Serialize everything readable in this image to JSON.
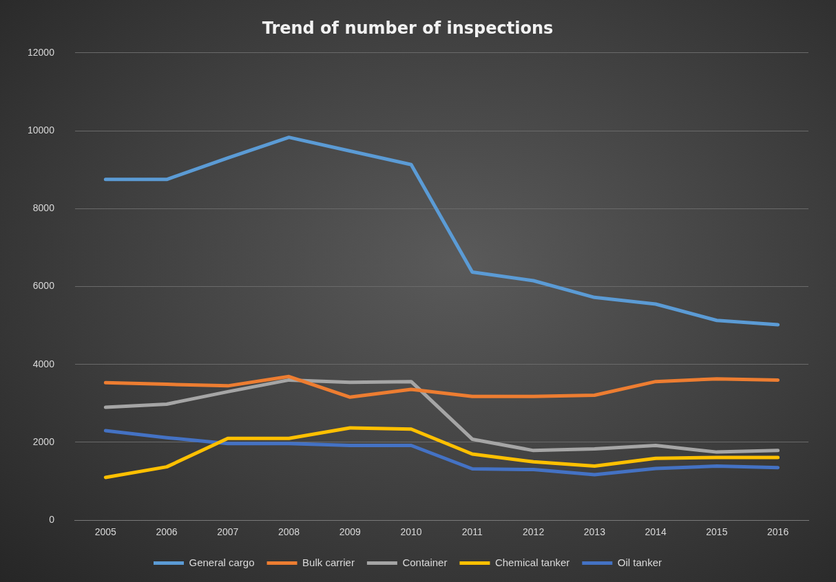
{
  "chart_data": {
    "type": "line",
    "title": "Trend of number of inspections",
    "categories": [
      "2005",
      "2006",
      "2007",
      "2008",
      "2009",
      "2010",
      "2011",
      "2012",
      "2013",
      "2014",
      "2015",
      "2016"
    ],
    "series": [
      {
        "name": "General cargo",
        "color": "#5b9bd5",
        "values": [
          8750,
          8750,
          9300,
          9830,
          9480,
          9130,
          6370,
          6150,
          5720,
          5550,
          5130,
          5020
        ]
      },
      {
        "name": "Bulk carrier",
        "color": "#ed7d31",
        "values": [
          3530,
          3490,
          3450,
          3690,
          3160,
          3360,
          3180,
          3180,
          3210,
          3560,
          3630,
          3600
        ]
      },
      {
        "name": "Container",
        "color": "#a5a5a5",
        "values": [
          2900,
          2980,
          3300,
          3600,
          3540,
          3560,
          2080,
          1790,
          1830,
          1920,
          1750,
          1790
        ]
      },
      {
        "name": "Chemical tanker",
        "color": "#ffc000",
        "values": [
          1100,
          1370,
          2100,
          2100,
          2370,
          2340,
          1700,
          1500,
          1390,
          1590,
          1610,
          1610
        ]
      },
      {
        "name": "Oil tanker",
        "color": "#4472c4",
        "values": [
          2300,
          2120,
          1970,
          1970,
          1920,
          1920,
          1320,
          1300,
          1170,
          1330,
          1390,
          1350
        ]
      }
    ],
    "ylim": [
      0,
      12000
    ],
    "yticks": [
      0,
      2000,
      4000,
      6000,
      8000,
      10000,
      12000
    ],
    "grid": "y",
    "legend": "bottom",
    "marker": "none",
    "line_style": "solid"
  }
}
